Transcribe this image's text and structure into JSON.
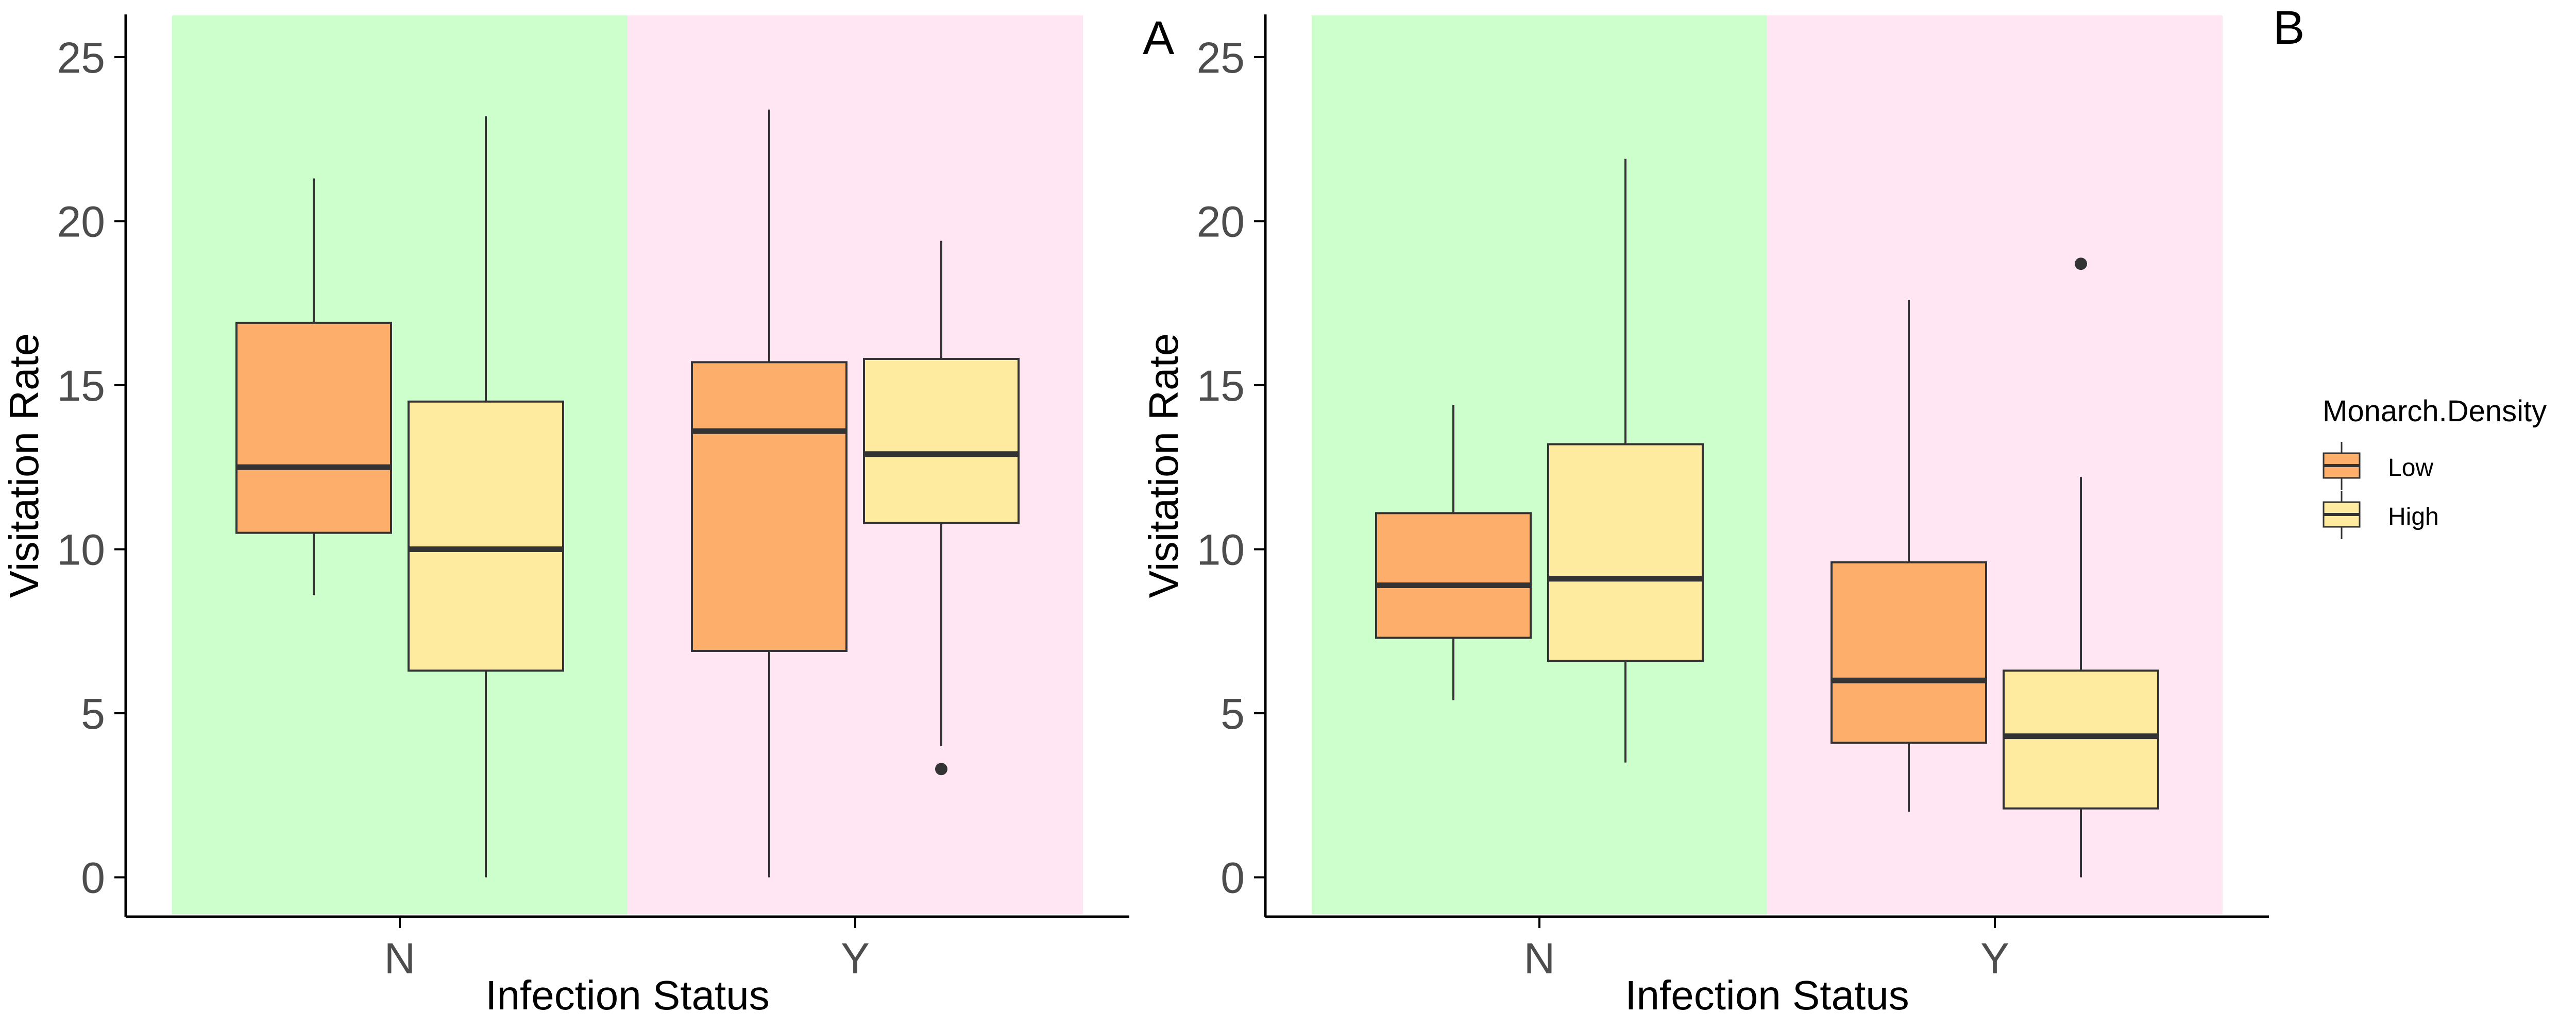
{
  "figure": {
    "legend": {
      "title": "Monarch.Density",
      "placement": "right",
      "items": [
        {
          "label": "Low",
          "color": "#FDAE6B"
        },
        {
          "label": "High",
          "color": "#FEEB9F"
        }
      ]
    },
    "colors": {
      "background_N": "#CCFFCC",
      "background_Y": "#FFE6F2",
      "box_stroke": "#333333",
      "median": "#333333",
      "axis": "#000000"
    }
  },
  "chart_data": [
    {
      "type": "box",
      "panel_label": "A",
      "xlabel": "Infection Status",
      "ylabel": "Visitation Rate",
      "categories": [
        "N",
        "Y"
      ],
      "ylim": [
        -1.2,
        26.3
      ],
      "yticks": [
        0,
        5,
        10,
        15,
        20,
        25
      ],
      "grid": false,
      "series": [
        {
          "name": "Low",
          "boxes": [
            {
              "category": "N",
              "whisker_low": 8.6,
              "q1": 10.5,
              "median": 12.5,
              "q3": 16.9,
              "whisker_high": 21.3,
              "outliers": []
            },
            {
              "category": "Y",
              "whisker_low": 0.0,
              "q1": 6.9,
              "median": 13.6,
              "q3": 15.7,
              "whisker_high": 23.4,
              "outliers": []
            }
          ]
        },
        {
          "name": "High",
          "boxes": [
            {
              "category": "N",
              "whisker_low": 0.0,
              "q1": 6.3,
              "median": 10.0,
              "q3": 14.5,
              "whisker_high": 23.2,
              "outliers": []
            },
            {
              "category": "Y",
              "whisker_low": 4.0,
              "q1": 10.8,
              "median": 12.9,
              "q3": 15.8,
              "whisker_high": 19.4,
              "outliers": [
                3.3
              ]
            }
          ]
        }
      ]
    },
    {
      "type": "box",
      "panel_label": "B",
      "xlabel": "Infection Status",
      "ylabel": "Visitation Rate",
      "categories": [
        "N",
        "Y"
      ],
      "ylim": [
        -1.2,
        26.3
      ],
      "yticks": [
        0,
        5,
        10,
        15,
        20,
        25
      ],
      "grid": false,
      "series": [
        {
          "name": "Low",
          "boxes": [
            {
              "category": "N",
              "whisker_low": 5.4,
              "q1": 7.3,
              "median": 8.9,
              "q3": 11.1,
              "whisker_high": 14.4,
              "outliers": []
            },
            {
              "category": "Y",
              "whisker_low": 2.0,
              "q1": 4.1,
              "median": 6.0,
              "q3": 9.6,
              "whisker_high": 17.6,
              "outliers": []
            }
          ]
        },
        {
          "name": "High",
          "boxes": [
            {
              "category": "N",
              "whisker_low": 3.5,
              "q1": 6.6,
              "median": 9.1,
              "q3": 13.2,
              "whisker_high": 21.9,
              "outliers": []
            },
            {
              "category": "Y",
              "whisker_low": 0.0,
              "q1": 2.1,
              "median": 4.3,
              "q3": 6.3,
              "whisker_high": 12.2,
              "outliers": [
                18.7
              ]
            }
          ]
        }
      ]
    }
  ]
}
